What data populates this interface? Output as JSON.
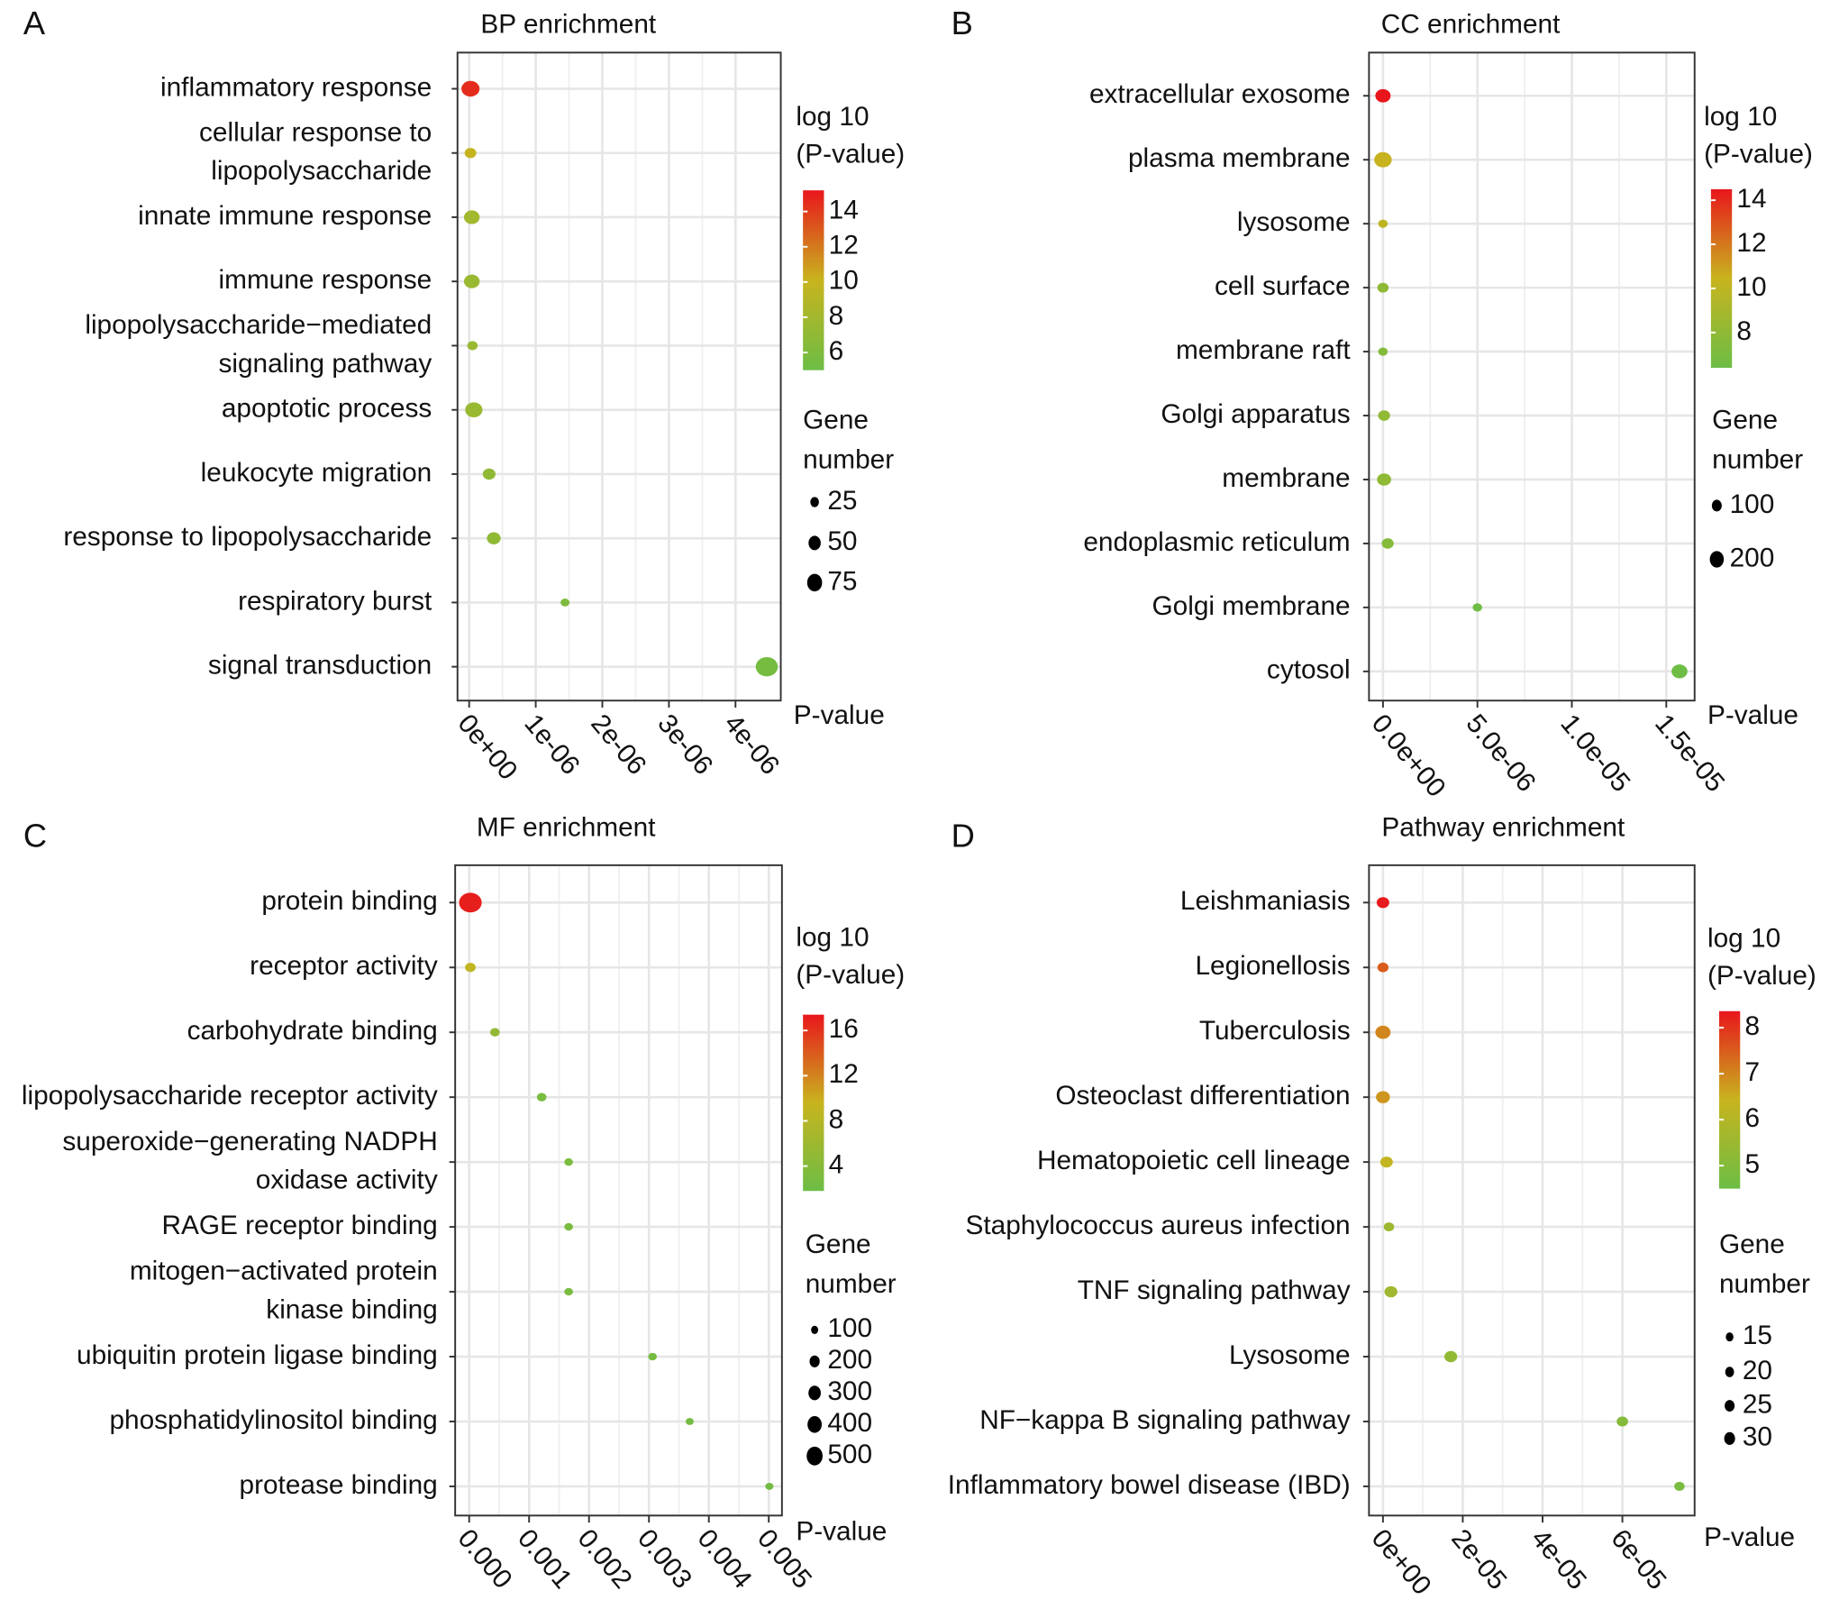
{
  "chart_data": [
    {
      "type": "scatter",
      "panel": "A",
      "title": "BP enrichment",
      "x_label": "P-value",
      "categories": [
        "inflammatory response",
        [
          "cellular response to",
          "lipopolysaccharide"
        ],
        "innate immune response",
        "immune response",
        [
          "lipopolysaccharide−mediated",
          "signaling pathway"
        ],
        "apoptotic process",
        "leukocyte migration",
        "response to lipopolysaccharide",
        "respiratory burst",
        "signal transduction"
      ],
      "values": [
        2e-08,
        2e-08,
        4e-08,
        4e-08,
        5e-08,
        7e-08,
        3e-07,
        3.7e-07,
        1.44e-06,
        4.47e-06
      ],
      "sizes": [
        60,
        25,
        45,
        45,
        20,
        55,
        30,
        35,
        15,
        90
      ],
      "color_values": [
        14.5,
        10,
        8,
        7.5,
        7.5,
        7.5,
        7,
        7,
        6,
        5.5
      ],
      "xlim": [
        -1.75e-07,
        4.68e-06
      ],
      "xticks": [
        {
          "value": 0,
          "label": "0e+00"
        },
        {
          "value": 1e-06,
          "label": "1e-06"
        },
        {
          "value": 2e-06,
          "label": "2e-06"
        },
        {
          "value": 3e-06,
          "label": "3e-06"
        },
        {
          "value": 4e-06,
          "label": "4e-06"
        }
      ],
      "color_legend": {
        "title": [
          "log 10",
          "(P-value)"
        ],
        "lim": [
          5,
          15.2
        ],
        "ticks": [
          6,
          8,
          10,
          12,
          14
        ],
        "colormap": [
          "#6cbd45",
          "#c8b41e",
          "#e8161c"
        ]
      },
      "size_legend": {
        "title": [
          "Gene",
          "number"
        ],
        "values": [
          25,
          50,
          75
        ]
      }
    },
    {
      "type": "scatter",
      "panel": "B",
      "title": "CC enrichment",
      "x_label": "P-value",
      "categories": [
        "extracellular exosome",
        "plasma membrane",
        "lysosome",
        "cell surface",
        "membrane raft",
        "Golgi apparatus",
        "membrane",
        "endoplasmic reticulum",
        "Golgi membrane",
        "cytosol"
      ],
      "values": [
        0,
        0,
        0,
        0,
        0,
        6e-08,
        6e-08,
        2.5e-07,
        5e-06,
        1.57e-05
      ],
      "sizes": [
        130,
        170,
        50,
        70,
        50,
        80,
        110,
        80,
        50,
        140
      ],
      "color_values": [
        14.5,
        10.5,
        10,
        8,
        7.5,
        8,
        8,
        7.5,
        6.5,
        6.5
      ],
      "xlim": [
        -7.4e-07,
        1.65e-05
      ],
      "xticks": [
        {
          "value": 0,
          "label": "0.0e+00"
        },
        {
          "value": 5e-06,
          "label": "5.0e-06"
        },
        {
          "value": 1e-05,
          "label": "1.0e-05"
        },
        {
          "value": 1.5e-05,
          "label": "1.5e-05"
        }
      ],
      "color_legend": {
        "title": [
          "log 10",
          "(P-value)"
        ],
        "lim": [
          6.4,
          14.5
        ],
        "ticks": [
          8,
          10,
          12,
          14
        ],
        "colormap": [
          "#6cbd45",
          "#c8b41e",
          "#e8161c"
        ]
      },
      "size_legend": {
        "title": [
          "Gene",
          "number"
        ],
        "values": [
          100,
          200
        ]
      }
    },
    {
      "type": "scatter",
      "panel": "C",
      "title": "MF enrichment",
      "x_label": "P-value",
      "categories": [
        "protein binding",
        "receptor activity",
        "carbohydrate binding",
        "lipopolysaccharide receptor activity",
        [
          "superoxide−generating NADPH",
          "oxidase activity"
        ],
        "RAGE receptor binding",
        [
          "mitogen−activated protein",
          "kinase binding"
        ],
        "ubiquitin protein ligase binding",
        "phosphatidylinositol binding",
        "protease binding"
      ],
      "values": [
        2e-05,
        2e-05,
        0.00043,
        0.00121,
        0.00166,
        0.00166,
        0.00166,
        0.00306,
        0.00368,
        0.00501
      ],
      "sizes": [
        550,
        120,
        100,
        100,
        80,
        80,
        80,
        80,
        70,
        70
      ],
      "color_values": [
        17,
        9,
        5,
        3,
        3,
        3,
        3,
        2.5,
        2.5,
        2.3
      ],
      "xlim": [
        -0.000234,
        0.00522
      ],
      "xticks": [
        {
          "value": 0,
          "label": "0.000"
        },
        {
          "value": 0.001,
          "label": "0.001"
        },
        {
          "value": 0.002,
          "label": "0.002"
        },
        {
          "value": 0.003,
          "label": "0.003"
        },
        {
          "value": 0.004,
          "label": "0.004"
        },
        {
          "value": 0.005,
          "label": "0.005"
        }
      ],
      "color_legend": {
        "title": [
          "log 10",
          "(P-value)"
        ],
        "lim": [
          1.8,
          17.4
        ],
        "ticks": [
          4,
          8,
          12,
          16
        ],
        "colormap": [
          "#6cbd45",
          "#c8b41e",
          "#e8161c"
        ]
      },
      "size_legend": {
        "title": [
          "Gene",
          "number"
        ],
        "values": [
          100,
          200,
          300,
          400,
          500
        ]
      }
    },
    {
      "type": "scatter",
      "panel": "D",
      "title": "Pathway enrichment",
      "x_label": "P-value",
      "categories": [
        "Leishmaniasis",
        "Legionellosis",
        "Tuberculosis",
        "Osteoclast differentiation",
        "Hematopoietic cell lineage",
        "Staphylococcus aureus infection",
        "TNF signaling pathway",
        "Lysosome",
        "NF−kappa B signaling pathway",
        "Inflammatory bowel disease (IBD)"
      ],
      "values": [
        0,
        0,
        0,
        0,
        9e-07,
        1.5e-06,
        2e-06,
        1.7e-05,
        6e-05,
        7.43e-05
      ],
      "sizes": [
        22,
        17,
        32,
        27,
        22,
        15,
        23,
        23,
        18,
        15
      ],
      "color_values": [
        8.3,
        7.5,
        7,
        6.8,
        6.3,
        5.5,
        5.6,
        5.3,
        5,
        4.8
      ],
      "xlim": [
        -3.5e-06,
        7.81e-05
      ],
      "xticks": [
        {
          "value": 0,
          "label": "0e+00"
        },
        {
          "value": 2e-05,
          "label": "2e-05"
        },
        {
          "value": 4e-05,
          "label": "4e-05"
        },
        {
          "value": 6e-05,
          "label": "6e-05"
        }
      ],
      "color_legend": {
        "title": [
          "log 10",
          "(P-value)"
        ],
        "lim": [
          4.5,
          8.36
        ],
        "ticks": [
          5,
          6,
          7,
          8
        ],
        "colormap": [
          "#6cbd45",
          "#c8b41e",
          "#e8161c"
        ]
      },
      "size_legend": {
        "title": [
          "Gene",
          "number"
        ],
        "values": [
          15,
          20,
          25,
          30
        ]
      }
    }
  ]
}
